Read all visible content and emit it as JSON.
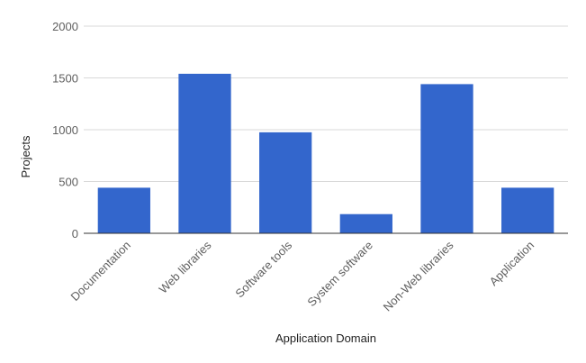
{
  "chart_data": {
    "type": "bar",
    "title": "",
    "xlabel": "Application Domain",
    "ylabel": "Projects",
    "categories": [
      "Documentation",
      "Web libraries",
      "Software tools",
      "System software",
      "Non-Web libraries",
      "Application"
    ],
    "values": [
      440,
      1540,
      975,
      185,
      1440,
      440
    ],
    "ylim": [
      0,
      2000
    ],
    "yticks": [
      0,
      500,
      1000,
      1500,
      2000
    ],
    "grid": true,
    "legend": "none",
    "bar_color": "#3366cc"
  }
}
